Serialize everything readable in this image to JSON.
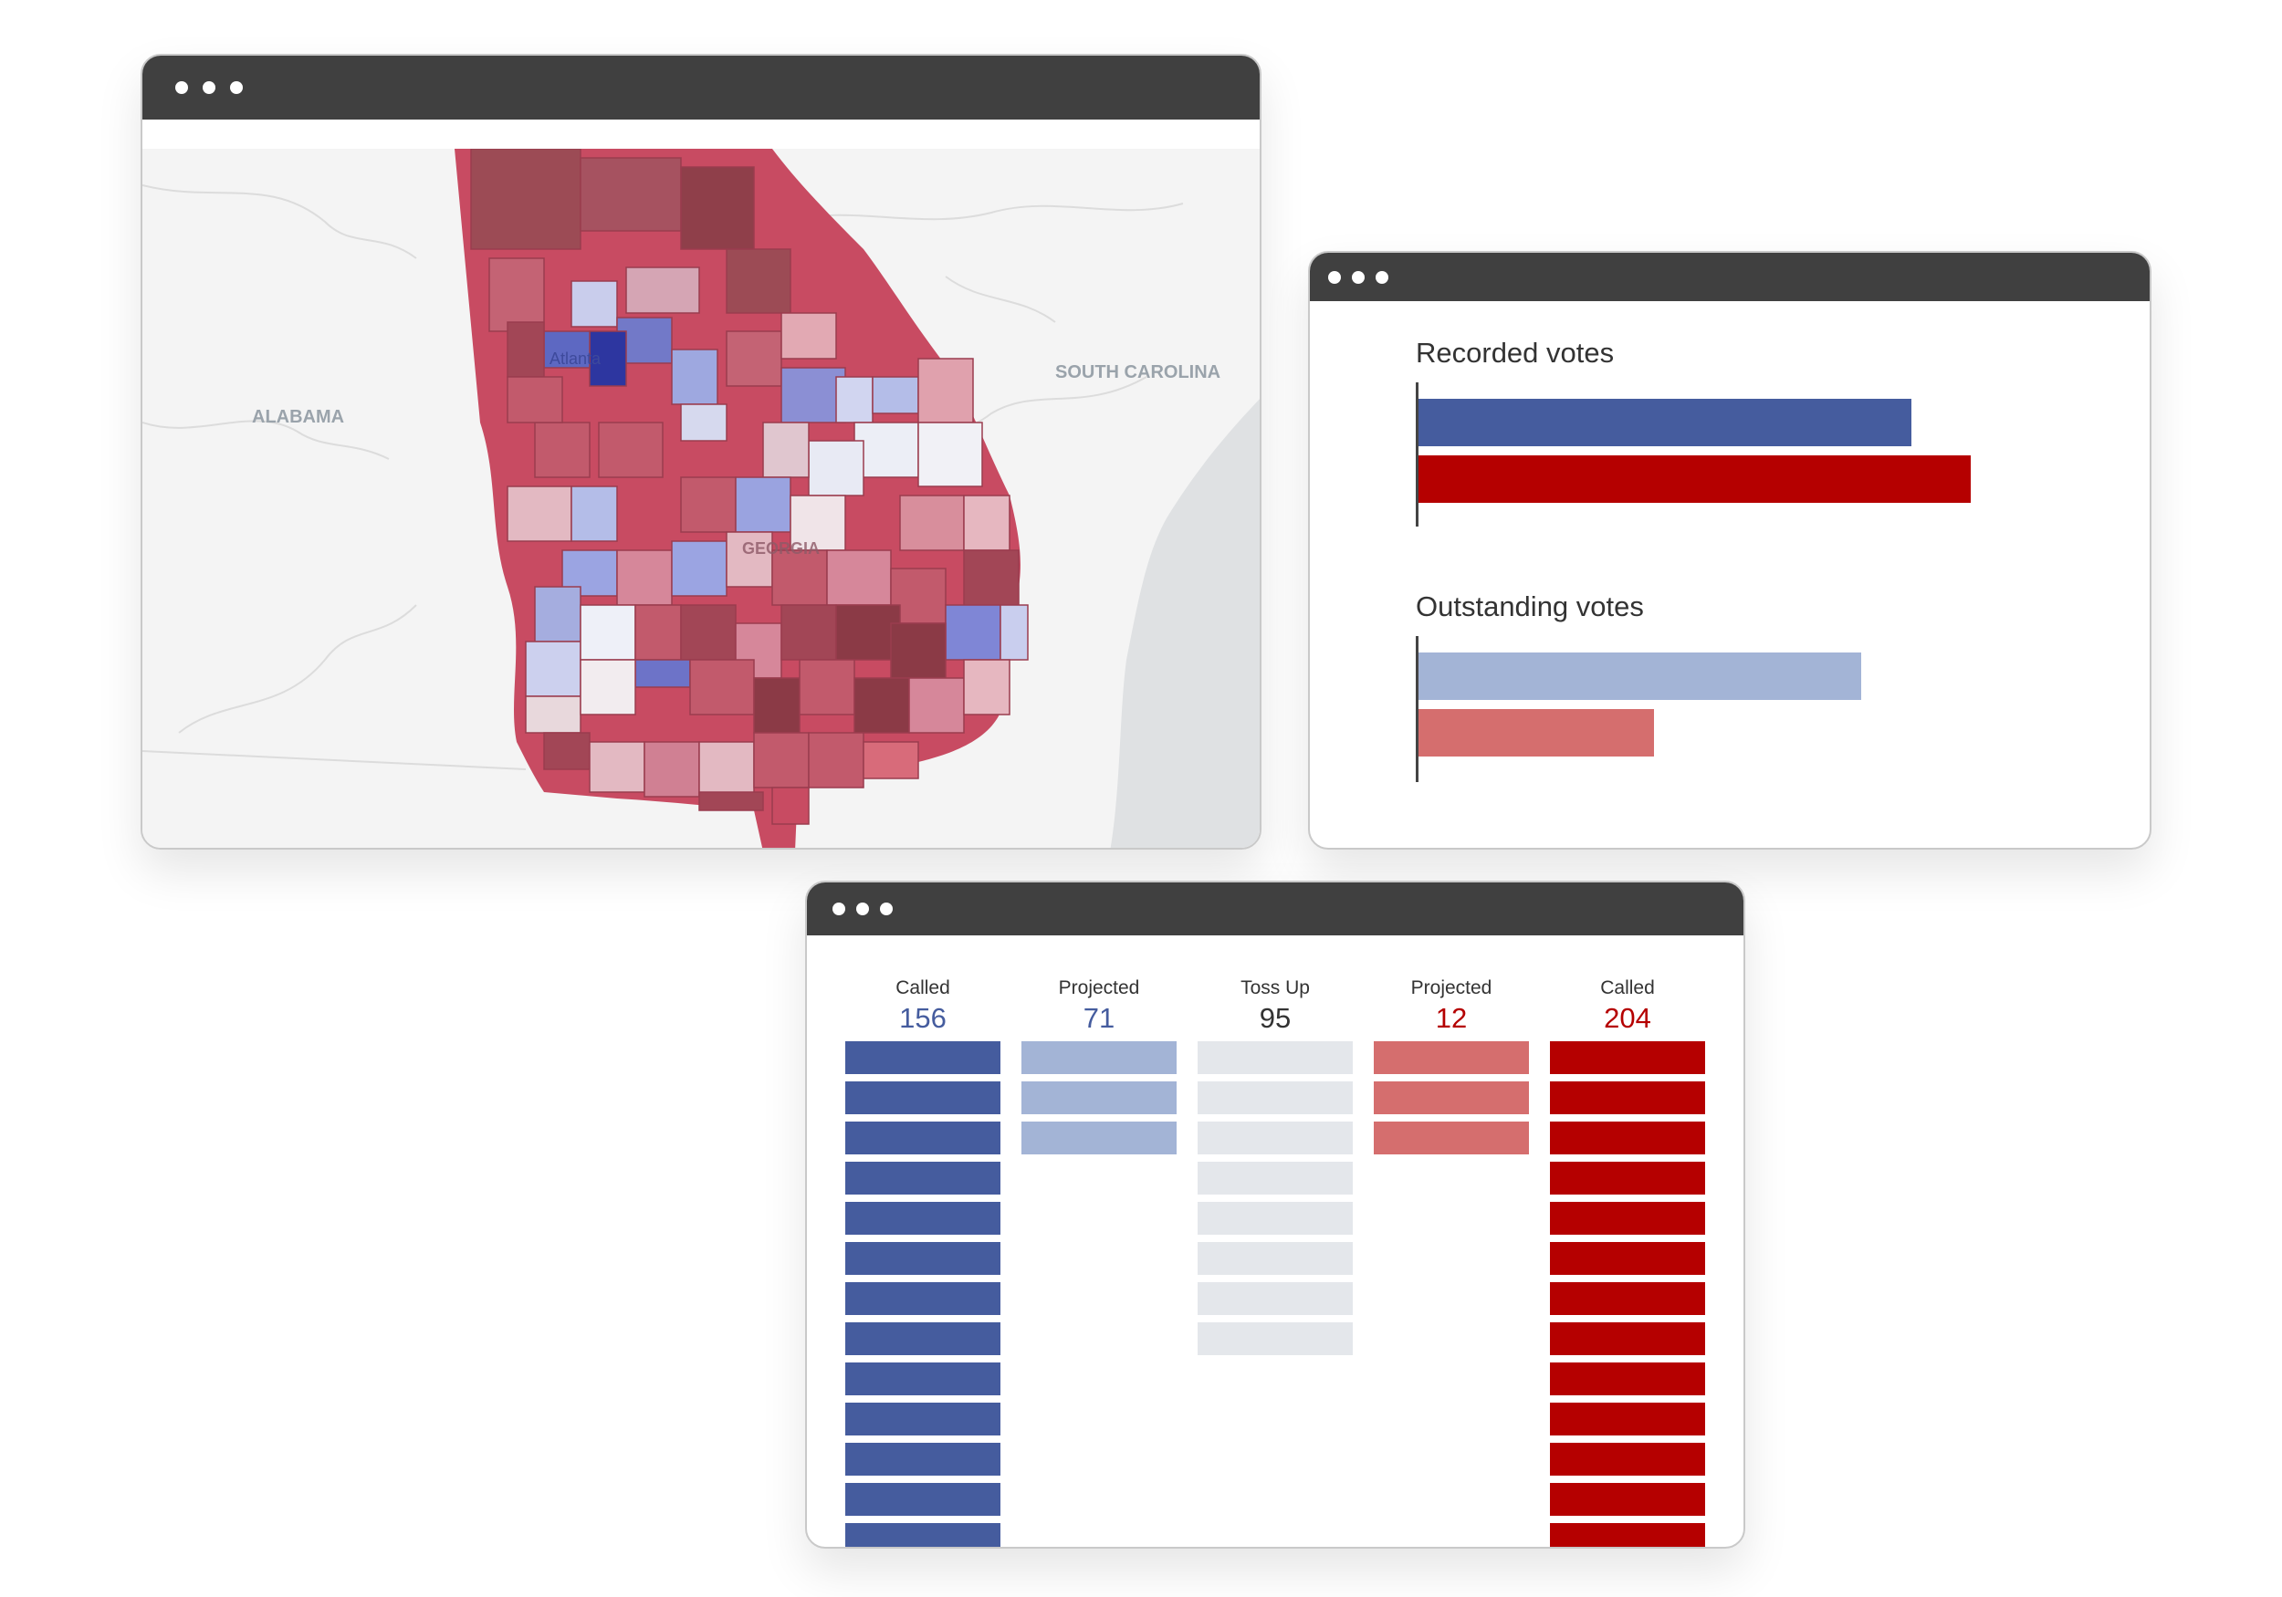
{
  "colors": {
    "dem_called": "#455c9e",
    "dem_projected": "#a3b4d6",
    "tossup": "#e4e7eb",
    "rep_projected": "#d56e6e",
    "rep_called": "#b50000"
  },
  "map_window": {
    "labels": {
      "alabama": "ALABAMA",
      "south_carolina": "SOUTH CAROLINA",
      "georgia": "GEORGIA",
      "atlanta": "Atlanta"
    }
  },
  "votes_window": {
    "recorded_title": "Recorded votes",
    "outstanding_title": "Outstanding votes"
  },
  "chart_data": {
    "type": "bar",
    "orientation": "horizontal",
    "groups": [
      {
        "title": "Recorded votes",
        "series": [
          {
            "party": "Democrat",
            "value": 540,
            "color": "#455c9e"
          },
          {
            "party": "Republican",
            "value": 605,
            "color": "#b50000"
          }
        ]
      },
      {
        "title": "Outstanding votes",
        "series": [
          {
            "party": "Democrat",
            "value": 485,
            "color": "#a3b4d6"
          },
          {
            "party": "Republican",
            "value": 258,
            "color": "#d56e6e"
          }
        ]
      }
    ],
    "xlim": [
      0,
      700
    ],
    "axis_labels": "none"
  },
  "ratings_window": {
    "columns": [
      {
        "label": "Called",
        "count": "156",
        "color": "#455c9e",
        "bars_shown": 13
      },
      {
        "label": "Projected",
        "count": "71",
        "color": "#455c9e",
        "bars_shown": 3
      },
      {
        "label": "Toss Up",
        "count": "95",
        "color": "#333333",
        "bars_shown": 8
      },
      {
        "label": "Projected",
        "count": "12",
        "color": "#b50000",
        "bars_shown": 3
      },
      {
        "label": "Called",
        "count": "204",
        "color": "#b50000",
        "bars_shown": 13
      }
    ]
  }
}
